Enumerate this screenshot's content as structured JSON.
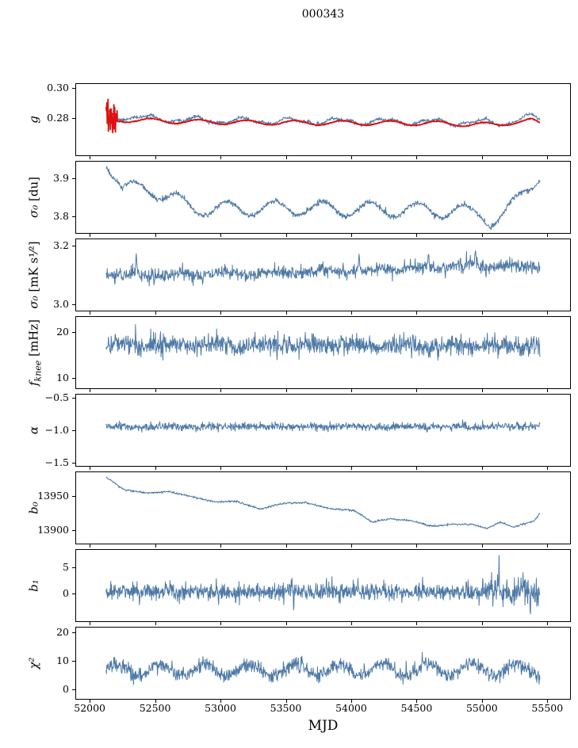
{
  "chart_data": {
    "type": "line",
    "title": "000343",
    "xlabel": "MJD",
    "grid": false,
    "legend": "none",
    "colors": {
      "primary": "#4f7aa7",
      "secondary": "#dd1111",
      "axis": "#000000",
      "background": "#ffffff"
    },
    "x": {
      "lim": [
        51890,
        55680
      ],
      "ticks": [
        52000,
        52500,
        53000,
        53500,
        54000,
        54500,
        55000,
        55500
      ],
      "tick_labels": [
        "52000",
        "52500",
        "53000",
        "53500",
        "54000",
        "54500",
        "55000",
        "55500"
      ]
    },
    "sample": {
      "x_start": 52125,
      "x_end": 55445,
      "step": 3
    },
    "panels": [
      {
        "id": "g",
        "ylabel": {
          "sym": "g",
          "sub": "",
          "unit": ""
        },
        "ylim": [
          0.2546,
          0.3034
        ],
        "yticks": [
          {
            "v": 0.3,
            "label": "0.30"
          },
          {
            "v": 0.28,
            "label": "0.28"
          }
        ],
        "series": [
          {
            "name": "blue",
            "color": "#4f7aa7",
            "lw": 1,
            "seed": 11,
            "anchors": [
              [
                52125,
                0.2838
              ],
              [
                52250,
                0.2808
              ],
              [
                52450,
                0.2798
              ],
              [
                52700,
                0.2787
              ],
              [
                53200,
                0.2781
              ],
              [
                53800,
                0.2779
              ],
              [
                54500,
                0.2776
              ],
              [
                55000,
                0.2772
              ],
              [
                55200,
                0.277
              ],
              [
                55340,
                0.2806
              ],
              [
                55450,
                0.2792
              ]
            ],
            "seasonal": [
              {
                "amp": 0.0018,
                "period": 365,
                "phase": 52350
              },
              {
                "amp": 0.0007,
                "period": 170,
                "phase": 52100
              }
            ],
            "noise": 0.00055
          },
          {
            "name": "red",
            "color": "#dd1111",
            "lw": 1.8,
            "seed": 12,
            "anchors": [
              [
                52125,
                0.2782
              ],
              [
                52300,
                0.2788
              ],
              [
                52500,
                0.2782
              ],
              [
                52800,
                0.2776
              ],
              [
                53300,
                0.277
              ],
              [
                53900,
                0.2768
              ],
              [
                54600,
                0.2766
              ],
              [
                55100,
                0.2755
              ],
              [
                55250,
                0.2775
              ],
              [
                55380,
                0.2783
              ],
              [
                55450,
                0.2757
              ]
            ],
            "seasonal": [
              {
                "amp": 0.0015,
                "period": 365,
                "phase": 52380
              }
            ],
            "noise": 0.00015,
            "noise_windows": [
              {
                "x0": 52125,
                "x1": 52210,
                "sigma": 0.0055
              }
            ]
          }
        ]
      },
      {
        "id": "sigma0-du",
        "ylabel": {
          "sym": "σ₀",
          "sub": "",
          "unit": " [du]"
        },
        "ylim": [
          3.755,
          3.945
        ],
        "yticks": [
          {
            "v": 3.9,
            "label": "3.9"
          },
          {
            "v": 3.8,
            "label": "3.8"
          }
        ],
        "series": [
          {
            "name": "blue",
            "color": "#4f7aa7",
            "lw": 1,
            "seed": 21,
            "anchors": [
              [
                52125,
                3.95
              ],
              [
                52250,
                3.868
              ],
              [
                52430,
                3.878
              ],
              [
                52600,
                3.85
              ],
              [
                52800,
                3.822
              ],
              [
                53000,
                3.82
              ],
              [
                53600,
                3.822
              ],
              [
                54300,
                3.818
              ],
              [
                54800,
                3.815
              ],
              [
                55000,
                3.803
              ],
              [
                55080,
                3.79
              ],
              [
                55170,
                3.806
              ],
              [
                55300,
                3.852
              ],
              [
                55450,
                3.916
              ]
            ],
            "seasonal": [
              {
                "amp": 0.019,
                "period": 365,
                "phase": 52959
              }
            ],
            "noise": 0.0035
          }
        ]
      },
      {
        "id": "sigma0-mk",
        "ylabel": {
          "sym": "σ₀",
          "sub": "",
          "unit": " [mK s¹⁄²]"
        },
        "ylim": [
          2.975,
          3.225
        ],
        "yticks": [
          {
            "v": 3.2,
            "label": "3.2"
          },
          {
            "v": 3.0,
            "label": "3.0"
          }
        ],
        "series": [
          {
            "name": "blue",
            "color": "#4f7aa7",
            "lw": 1,
            "seed": 31,
            "anchors": [
              [
                52125,
                3.103
              ],
              [
                52500,
                3.098
              ],
              [
                53000,
                3.105
              ],
              [
                53600,
                3.11
              ],
              [
                54200,
                3.118
              ],
              [
                54700,
                3.128
              ],
              [
                55000,
                3.133
              ],
              [
                55200,
                3.128
              ],
              [
                55450,
                3.128
              ]
            ],
            "seasonal": [
              {
                "amp": 0.005,
                "period": 365,
                "phase": 52600
              }
            ],
            "noise": 0.0115,
            "spikes": [
              {
                "x0": 52355,
                "amp": 0.055,
                "w": 7
              },
              {
                "x0": 54060,
                "amp": 0.045,
                "w": 6
              },
              {
                "x0": 54590,
                "amp": 0.04,
                "w": 6
              },
              {
                "x0": 54950,
                "amp": 0.038,
                "w": 6
              }
            ]
          }
        ]
      },
      {
        "id": "fknee",
        "ylabel": {
          "sym": "f",
          "sub": "knee",
          "unit": " [mHz]"
        },
        "ylim": [
          7.5,
          23.5
        ],
        "yticks": [
          {
            "v": 20,
            "label": "20"
          },
          {
            "v": 10,
            "label": "10"
          }
        ],
        "series": [
          {
            "name": "blue",
            "color": "#4f7aa7",
            "lw": 1,
            "seed": 41,
            "anchors": [
              [
                52125,
                17.3
              ],
              [
                53800,
                17.1
              ],
              [
                55450,
                17.0
              ]
            ],
            "seasonal": [
              {
                "amp": 0.35,
                "period": 365,
                "phase": 52500
              }
            ],
            "noise": 1.1,
            "spikes": [
              {
                "x0": 53925,
                "amp": 2.2,
                "w": 8
              },
              {
                "x0": 52350,
                "amp": 1.5,
                "w": 6
              }
            ]
          }
        ]
      },
      {
        "id": "alpha",
        "ylabel": {
          "sym": "α",
          "sub": "",
          "unit": ""
        },
        "ylim": [
          -1.56,
          -0.44
        ],
        "yticks": [
          {
            "v": -0.5,
            "label": "−0.5"
          },
          {
            "v": -1.0,
            "label": "−1.0"
          },
          {
            "v": -1.5,
            "label": "−1.5"
          }
        ],
        "series": [
          {
            "name": "blue",
            "color": "#4f7aa7",
            "lw": 1,
            "seed": 51,
            "anchors": [
              [
                52125,
                -0.952
              ],
              [
                55450,
                -0.94
              ]
            ],
            "seasonal": [
              {
                "amp": 0.006,
                "period": 365,
                "phase": 52500
              }
            ],
            "noise": 0.03
          }
        ]
      },
      {
        "id": "b0",
        "ylabel": {
          "sym": "b₀",
          "sub": "",
          "unit": ""
        },
        "ylim": [
          13880,
          13985
        ],
        "yticks": [
          {
            "v": 13950,
            "label": "13950"
          },
          {
            "v": 13900,
            "label": "13900"
          }
        ],
        "series": [
          {
            "name": "blue",
            "color": "#4f7aa7",
            "lw": 1,
            "seed": 61,
            "anchors": [
              [
                52125,
                13977
              ],
              [
                52260,
                13959
              ],
              [
                52430,
                13954
              ],
              [
                52600,
                13956
              ],
              [
                52750,
                13950
              ],
              [
                52950,
                13941
              ],
              [
                53120,
                13942
              ],
              [
                53300,
                13931
              ],
              [
                53480,
                13939
              ],
              [
                53650,
                13940
              ],
              [
                53850,
                13931
              ],
              [
                54020,
                13929
              ],
              [
                54160,
                13912
              ],
              [
                54300,
                13917
              ],
              [
                54460,
                13914
              ],
              [
                54620,
                13906
              ],
              [
                54780,
                13909
              ],
              [
                54920,
                13909
              ],
              [
                55040,
                13903
              ],
              [
                55140,
                13912
              ],
              [
                55240,
                13905
              ],
              [
                55330,
                13910
              ],
              [
                55400,
                13914
              ],
              [
                55450,
                13927
              ]
            ],
            "noise": 0.7
          }
        ]
      },
      {
        "id": "b1",
        "ylabel": {
          "sym": "b₁",
          "sub": "",
          "unit": ""
        },
        "ylim": [
          -5.5,
          8.5
        ],
        "yticks": [
          {
            "v": 5,
            "label": "5"
          },
          {
            "v": 0,
            "label": "0"
          }
        ],
        "series": [
          {
            "name": "blue",
            "color": "#4f7aa7",
            "lw": 1,
            "seed": 71,
            "anchors": [
              [
                52125,
                0.35
              ],
              [
                55450,
                0.3
              ]
            ],
            "noise": 0.85,
            "noise_windows": [
              {
                "x0": 55000,
                "x1": 55450,
                "sigma": 1.3
              }
            ],
            "spikes": [
              {
                "x0": 53560,
                "amp": -2.6,
                "w": 3
              },
              {
                "x0": 54250,
                "amp": 1.8,
                "w": 3
              },
              {
                "x0": 54880,
                "amp": 2.3,
                "w": 3
              },
              {
                "x0": 55130,
                "amp": 6.5,
                "w": 3
              },
              {
                "x0": 55230,
                "amp": -2.8,
                "w": 3
              },
              {
                "x0": 55300,
                "amp": 3.0,
                "w": 3
              },
              {
                "x0": 55370,
                "amp": -4.5,
                "w": 3
              },
              {
                "x0": 55420,
                "amp": -3.0,
                "w": 3
              }
            ]
          }
        ]
      },
      {
        "id": "chi2",
        "ylabel": {
          "sym": "χ²",
          "sub": "",
          "unit": ""
        },
        "ylim": [
          -3.5,
          22
        ],
        "yticks": [
          {
            "v": 20,
            "label": "20"
          },
          {
            "v": 10,
            "label": "10"
          },
          {
            "v": 0,
            "label": "0"
          }
        ],
        "series": [
          {
            "name": "blue",
            "color": "#4f7aa7",
            "lw": 1,
            "seed": 81,
            "anchors": [
              [
                52125,
                6.9
              ],
              [
                55450,
                7.1
              ]
            ],
            "seasonal": [
              {
                "amp": 2.0,
                "period": 340,
                "phase": 52460
              }
            ],
            "noise": 1.25
          }
        ]
      }
    ]
  }
}
